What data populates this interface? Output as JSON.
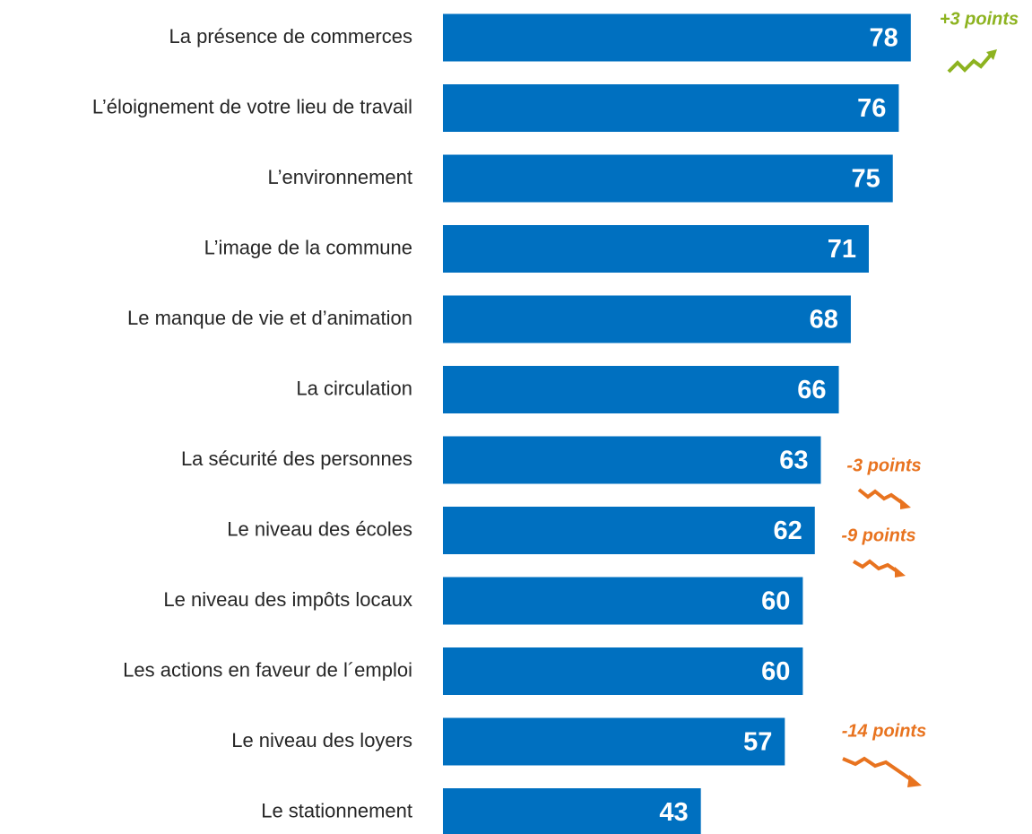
{
  "chart_data": {
    "type": "bar",
    "orientation": "horizontal",
    "color": "#0070c0",
    "categories": [
      "La présence de commerces",
      "L’éloignement de votre lieu de travail",
      "L’environnement",
      "L’image de la commune",
      "Le manque de vie et d’animation",
      "La circulation",
      "La sécurité des personnes",
      "Le niveau des écoles",
      "Le niveau des impôts locaux",
      "Les actions en faveur de l´emploi",
      "Le niveau des loyers",
      "Le stationnement"
    ],
    "values": [
      78,
      76,
      75,
      71,
      68,
      66,
      63,
      62,
      60,
      60,
      57,
      43
    ],
    "annotations": [
      "+3 points",
      "-3 points",
      "-9 points",
      "-14 points"
    ]
  }
}
